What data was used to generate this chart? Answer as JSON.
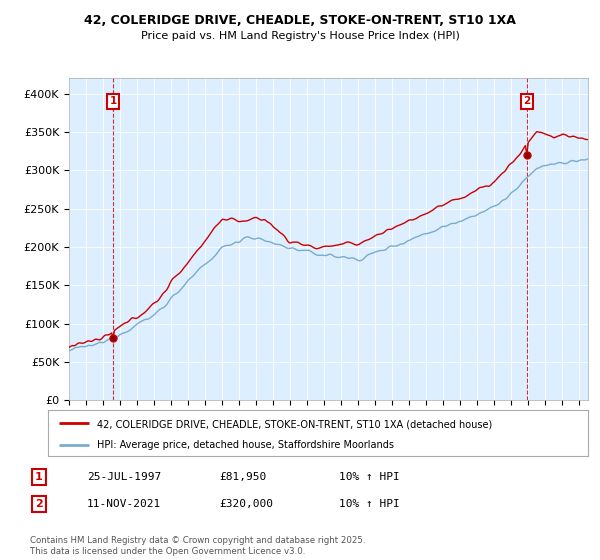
{
  "title1": "42, COLERIDGE DRIVE, CHEADLE, STOKE-ON-TRENT, ST10 1XA",
  "title2": "Price paid vs. HM Land Registry's House Price Index (HPI)",
  "legend_line1": "42, COLERIDGE DRIVE, CHEADLE, STOKE-ON-TRENT, ST10 1XA (detached house)",
  "legend_line2": "HPI: Average price, detached house, Staffordshire Moorlands",
  "marker1_label": "1",
  "marker1_date": "25-JUL-1997",
  "marker1_price": "£81,950",
  "marker1_hpi": "10% ↑ HPI",
  "marker2_label": "2",
  "marker2_date": "11-NOV-2021",
  "marker2_price": "£320,000",
  "marker2_hpi": "10% ↑ HPI",
  "footer": "Contains HM Land Registry data © Crown copyright and database right 2025.\nThis data is licensed under the Open Government Licence v3.0.",
  "red_color": "#cc0000",
  "blue_color": "#7aaccc",
  "chart_bg": "#ddeeff",
  "grid_color": "#ffffff",
  "background_color": "#ffffff",
  "ylim": [
    0,
    420000
  ],
  "yticks": [
    0,
    50000,
    100000,
    150000,
    200000,
    250000,
    300000,
    350000,
    400000
  ],
  "ytick_labels": [
    "£0",
    "£50K",
    "£100K",
    "£150K",
    "£200K",
    "£250K",
    "£300K",
    "£350K",
    "£400K"
  ],
  "t1": 1997.583,
  "t2": 2021.917,
  "price1": 81950,
  "price2": 320000
}
